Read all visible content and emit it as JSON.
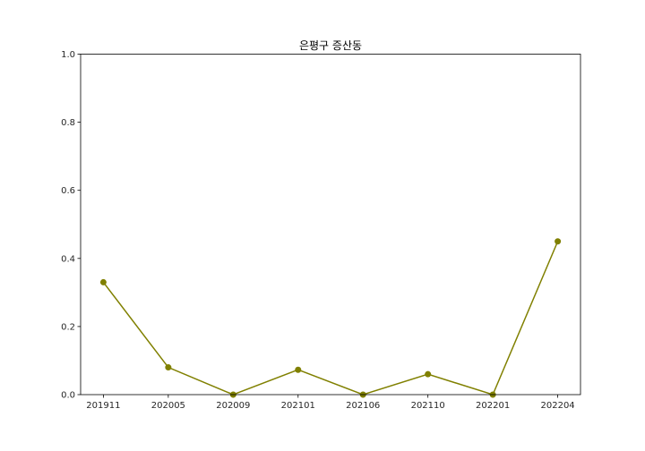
{
  "chart_data": {
    "type": "line",
    "title": "은평구 증산동",
    "xlabel": "",
    "ylabel": "",
    "categories": [
      "201911",
      "202005",
      "202009",
      "202101",
      "202106",
      "202110",
      "202201",
      "202204"
    ],
    "series": [
      {
        "values": [
          0.33,
          0.08,
          0.0,
          0.073,
          0.0,
          0.06,
          0.0,
          0.45
        ],
        "color": "#808000",
        "marker": "circle"
      }
    ],
    "ylim": [
      0,
      1.0
    ],
    "yticks": [
      "0.0",
      "0.2",
      "0.4",
      "0.6",
      "0.8",
      "1.0"
    ],
    "grid": false,
    "legend": "none"
  }
}
